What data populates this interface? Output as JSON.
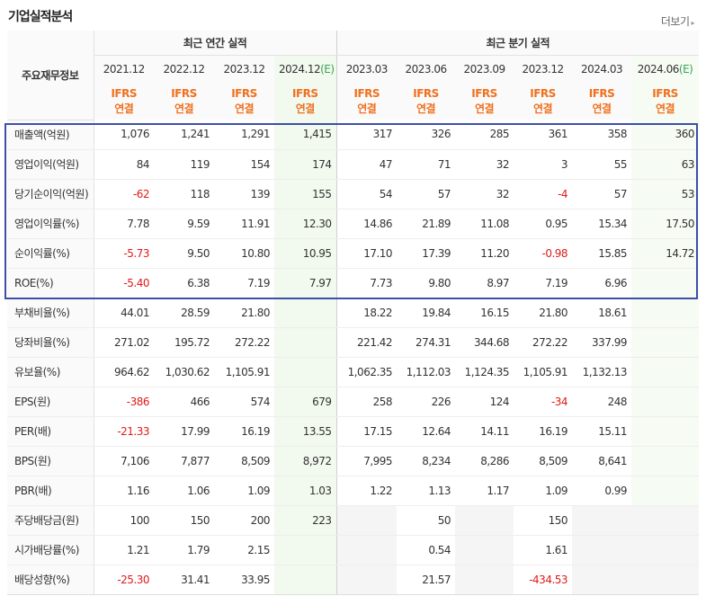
{
  "header": {
    "title": "기업실적분석",
    "more": "더보기"
  },
  "table": {
    "row_header": "주요재무정보",
    "annual_group": "최근 연간 실적",
    "quarter_group": "최근 분기 실적",
    "ifrs_top": "IFRS",
    "ifrs_bottom": "연결",
    "estimate_mark": "(E)",
    "annual_dates": [
      "2021.12",
      "2022.12",
      "2023.12",
      "2024.12"
    ],
    "quarter_dates": [
      "2023.03",
      "2023.06",
      "2023.09",
      "2023.12",
      "2024.03",
      "2024.06"
    ],
    "rows": [
      {
        "label": "매출액(억원)",
        "values": [
          "1,076",
          "1,241",
          "1,291",
          "1,415",
          "317",
          "326",
          "285",
          "361",
          "358",
          "360"
        ]
      },
      {
        "label": "영업이익(억원)",
        "values": [
          "84",
          "119",
          "154",
          "174",
          "47",
          "71",
          "32",
          "3",
          "55",
          "63"
        ]
      },
      {
        "label": "당기순이익(억원)",
        "values": [
          "-62",
          "118",
          "139",
          "155",
          "54",
          "57",
          "32",
          "-4",
          "57",
          "53"
        ]
      },
      {
        "label": "영업이익률(%)",
        "values": [
          "7.78",
          "9.59",
          "11.91",
          "12.30",
          "14.86",
          "21.89",
          "11.08",
          "0.95",
          "15.34",
          "17.50"
        ]
      },
      {
        "label": "순이익률(%)",
        "values": [
          "-5.73",
          "9.50",
          "10.80",
          "10.95",
          "17.10",
          "17.39",
          "11.20",
          "-0.98",
          "15.85",
          "14.72"
        ]
      },
      {
        "label": "ROE(%)",
        "values": [
          "-5.40",
          "6.38",
          "7.19",
          "7.97",
          "7.73",
          "9.80",
          "8.97",
          "7.19",
          "6.96",
          ""
        ]
      },
      {
        "label": "부채비율(%)",
        "values": [
          "44.01",
          "28.59",
          "21.80",
          "",
          "18.22",
          "19.84",
          "16.15",
          "21.80",
          "18.61",
          ""
        ]
      },
      {
        "label": "당좌비율(%)",
        "values": [
          "271.02",
          "195.72",
          "272.22",
          "",
          "221.42",
          "274.31",
          "344.68",
          "272.22",
          "337.99",
          ""
        ]
      },
      {
        "label": "유보율(%)",
        "values": [
          "964.62",
          "1,030.62",
          "1,105.91",
          "",
          "1,062.35",
          "1,112.03",
          "1,124.35",
          "1,105.91",
          "1,132.13",
          ""
        ]
      },
      {
        "label": "EPS(원)",
        "values": [
          "-386",
          "466",
          "574",
          "679",
          "258",
          "226",
          "124",
          "-34",
          "248",
          ""
        ]
      },
      {
        "label": "PER(배)",
        "values": [
          "-21.33",
          "17.99",
          "16.19",
          "13.55",
          "17.15",
          "12.64",
          "14.11",
          "16.19",
          "15.11",
          ""
        ]
      },
      {
        "label": "BPS(원)",
        "values": [
          "7,106",
          "7,877",
          "8,509",
          "8,972",
          "7,995",
          "8,234",
          "8,286",
          "8,509",
          "8,641",
          ""
        ]
      },
      {
        "label": "PBR(배)",
        "values": [
          "1.16",
          "1.06",
          "1.09",
          "1.03",
          "1.22",
          "1.13",
          "1.17",
          "1.09",
          "0.99",
          ""
        ]
      },
      {
        "label": "주당배당금(원)",
        "values": [
          "100",
          "150",
          "200",
          "223",
          "",
          "50",
          "",
          "150",
          "",
          ""
        ]
      },
      {
        "label": "시가배당률(%)",
        "values": [
          "1.21",
          "1.79",
          "2.15",
          "",
          "",
          "0.54",
          "",
          "1.61",
          "",
          ""
        ]
      },
      {
        "label": "배당성향(%)",
        "values": [
          "-25.30",
          "31.41",
          "33.95",
          "",
          "",
          "21.57",
          "",
          "-434.53",
          "",
          ""
        ]
      }
    ]
  },
  "colors": {
    "negative": "#e01a1a",
    "ifrs": "#f0701e",
    "highlight_border": "#3e4fa8",
    "estimate_bg": "#f2f9ef"
  }
}
